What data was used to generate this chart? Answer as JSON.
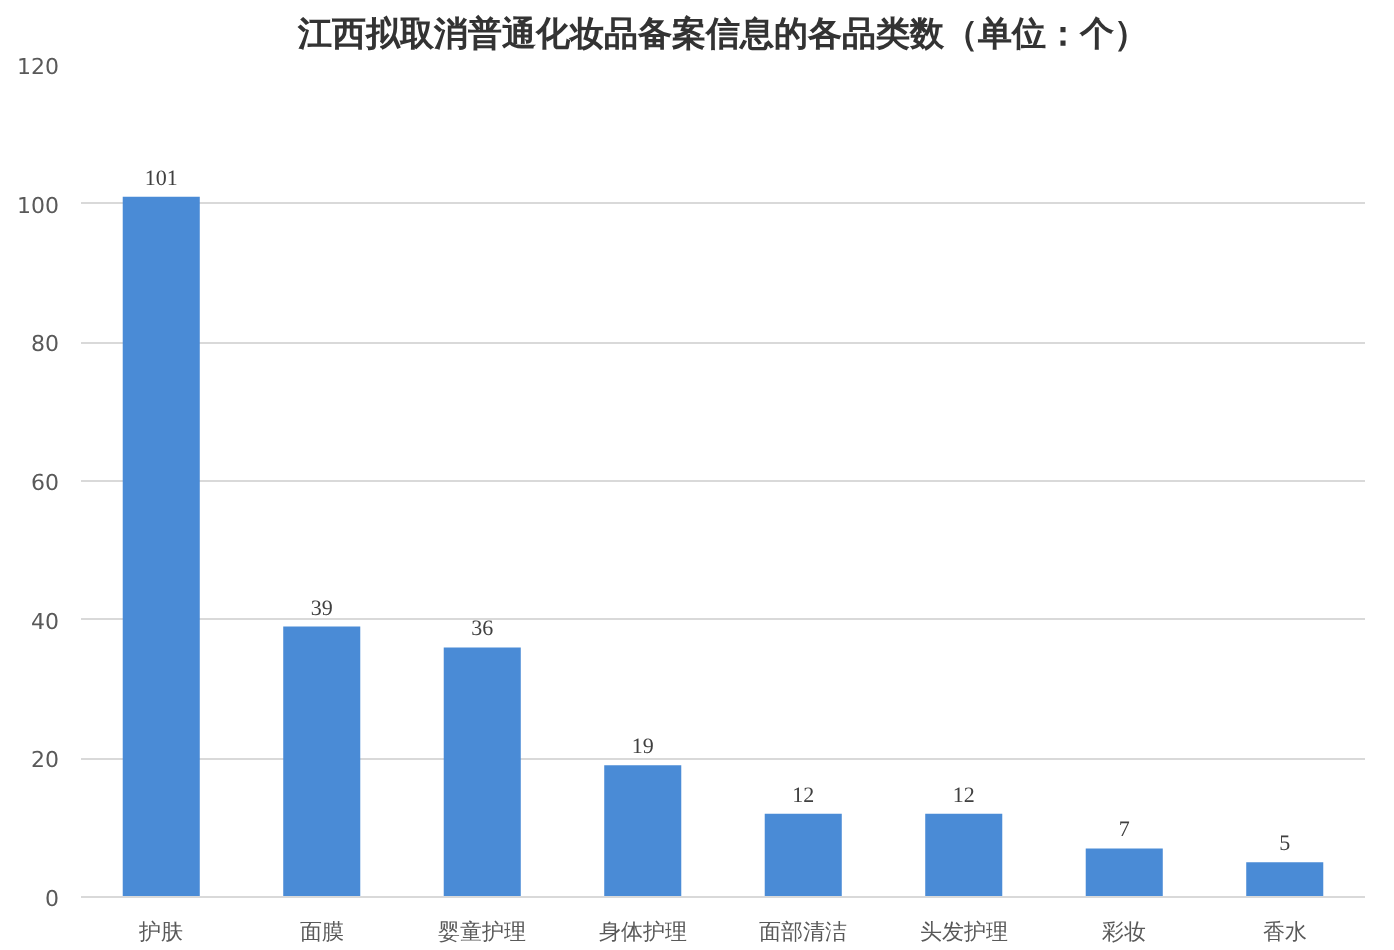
{
  "chart_data": {
    "type": "bar",
    "title": "江西拟取消普通化妆品备案信息的各品类数（单位：个）",
    "categories": [
      "护肤",
      "面膜",
      "婴童护理",
      "身体护理",
      "面部清洁",
      "头发护理",
      "彩妆",
      "香水"
    ],
    "values": [
      101,
      39,
      36,
      19,
      12,
      12,
      7,
      5
    ],
    "color": "#4a8bd6",
    "ylim": [
      0,
      120
    ],
    "yticks": [
      0,
      20,
      40,
      60,
      80,
      100,
      120
    ],
    "grid": "y",
    "data_labels": true
  }
}
